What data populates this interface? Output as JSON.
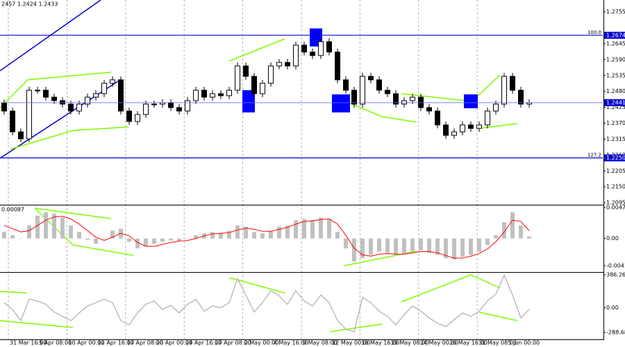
{
  "chart_data": [
    {
      "type": "candlestick",
      "header": "2457 1.2424 1.2433",
      "color": "#000000",
      "ohlc": [
        [
          1.244,
          1.2452,
          1.24,
          1.2412
        ],
        [
          1.2412,
          1.2424,
          1.2328,
          1.234
        ],
        [
          1.234,
          1.2352,
          1.2304,
          1.2316
        ],
        [
          1.2316,
          1.2496,
          1.2304,
          1.2484
        ],
        [
          1.2484,
          1.2496,
          1.2472,
          1.2484
        ],
        [
          1.2484,
          1.2496,
          1.2448,
          1.246
        ],
        [
          1.246,
          1.2472,
          1.2436,
          1.2448
        ],
        [
          1.2448,
          1.246,
          1.2424,
          1.2436
        ],
        [
          1.2436,
          1.2448,
          1.24,
          1.2412
        ],
        [
          1.2412,
          1.2448,
          1.24,
          1.2436
        ],
        [
          1.2436,
          1.2472,
          1.2424,
          1.246
        ],
        [
          1.246,
          1.2484,
          1.2448,
          1.2472
        ],
        [
          1.2472,
          1.252,
          1.246,
          1.2508
        ],
        [
          1.2508,
          1.2532,
          1.2496,
          1.252
        ],
        [
          1.252,
          1.2532,
          1.24,
          1.2412
        ],
        [
          1.2412,
          1.2424,
          1.2364,
          1.2376
        ],
        [
          1.2376,
          1.2412,
          1.2364,
          1.24
        ],
        [
          1.24,
          1.2448,
          1.2388,
          1.2436
        ],
        [
          1.2436,
          1.2448,
          1.2424,
          1.2436
        ],
        [
          1.2436,
          1.2453,
          1.2424,
          1.2441
        ],
        [
          1.2441,
          1.2453,
          1.2412,
          1.2424
        ],
        [
          1.2424,
          1.2436,
          1.24,
          1.2412
        ],
        [
          1.2412,
          1.246,
          1.24,
          1.2448
        ],
        [
          1.2448,
          1.2496,
          1.2436,
          1.2484
        ],
        [
          1.2484,
          1.2496,
          1.2448,
          1.246
        ],
        [
          1.246,
          1.2484,
          1.2448,
          1.2472
        ],
        [
          1.2472,
          1.2484,
          1.2453,
          1.2465
        ],
        [
          1.2465,
          1.2496,
          1.2453,
          1.2484
        ],
        [
          1.2484,
          1.258,
          1.2472,
          1.2568
        ],
        [
          1.2568,
          1.258,
          1.252,
          1.2532
        ],
        [
          1.2532,
          1.2544,
          1.246,
          1.2472
        ],
        [
          1.2472,
          1.252,
          1.246,
          1.2508
        ],
        [
          1.2508,
          1.258,
          1.2496,
          1.2568
        ],
        [
          1.2568,
          1.2592,
          1.2556,
          1.258
        ],
        [
          1.258,
          1.2592,
          1.2556,
          1.2568
        ],
        [
          1.2568,
          1.2652,
          1.2556,
          1.264
        ],
        [
          1.264,
          1.2652,
          1.2604,
          1.2616
        ],
        [
          1.2616,
          1.2628,
          1.2592,
          1.2604
        ],
        [
          1.2604,
          1.2664,
          1.2592,
          1.2652
        ],
        [
          1.2652,
          1.2664,
          1.2604,
          1.2616
        ],
        [
          1.2616,
          1.2628,
          1.2508,
          1.252
        ],
        [
          1.252,
          1.2532,
          1.2472,
          1.2484
        ],
        [
          1.2484,
          1.2496,
          1.2424,
          1.2436
        ],
        [
          1.2436,
          1.2544,
          1.2424,
          1.2532
        ],
        [
          1.2532,
          1.2544,
          1.2508,
          1.252
        ],
        [
          1.252,
          1.2532,
          1.2472,
          1.2484
        ],
        [
          1.2484,
          1.2496,
          1.246,
          1.2472
        ],
        [
          1.2472,
          1.2484,
          1.2424,
          1.2436
        ],
        [
          1.2436,
          1.246,
          1.2424,
          1.2448
        ],
        [
          1.2448,
          1.2472,
          1.2436,
          1.246
        ],
        [
          1.246,
          1.2472,
          1.2412,
          1.2424
        ],
        [
          1.2424,
          1.2436,
          1.24,
          1.2412
        ],
        [
          1.2412,
          1.2424,
          1.2352,
          1.2364
        ],
        [
          1.2364,
          1.2376,
          1.2316,
          1.2328
        ],
        [
          1.2328,
          1.2352,
          1.2316,
          1.234
        ],
        [
          1.234,
          1.2376,
          1.2328,
          1.2364
        ],
        [
          1.2364,
          1.2376,
          1.234,
          1.2352
        ],
        [
          1.2352,
          1.2376,
          1.234,
          1.2364
        ],
        [
          1.2364,
          1.2424,
          1.2352,
          1.2412
        ],
        [
          1.2412,
          1.2448,
          1.24,
          1.2436
        ],
        [
          1.2436,
          1.2544,
          1.2424,
          1.2532
        ],
        [
          1.2532,
          1.2544,
          1.2472,
          1.2484
        ],
        [
          1.2484,
          1.2496,
          1.2424,
          1.2436
        ],
        [
          1.2436,
          1.2453,
          1.2424,
          1.2441
        ]
      ],
      "ylim": [
        1.2088,
        1.2796
      ],
      "yticks": [
        1.2095,
        {
          "value": 1.215,
          "label": "1.2150"
        },
        1.2205,
        {
          "value": 1.226,
          "label": "1.2260"
        },
        1.2315,
        {
          "value": 1.237,
          "label": "1.2370"
        },
        1.2425,
        {
          "value": 1.248,
          "label": "1.2480"
        },
        1.2535,
        {
          "value": 1.259,
          "label": "1.2590"
        },
        1.2645,
        1.2755
      ],
      "levels": [
        {
          "name": "100.0",
          "price": 1.2674,
          "color": "#0000cd"
        },
        {
          "name": "127.2",
          "price": {
            "value": 1.225,
            "label": "1.2250"
          },
          "color": "#0000cd"
        }
      ],
      "last_price": 1.2441,
      "xtick_labels": [
        "31 Mar 16:00",
        "5 Apr 08:00",
        "10 Apr 00:00",
        "12 Apr 16:00",
        "17 Apr 08:00",
        "20 Apr 00:00",
        "24 Apr 16:00",
        "27 Apr 08:00",
        "2 May 00:00",
        "4 May 16:00",
        "9 May 08:00",
        "12 May 00:00",
        "16 May 16:00",
        "19 May 08:00",
        "24 May 00:00",
        "26 May 16:00",
        "31 May 08:00",
        "5 Jun 00:00"
      ]
    },
    {
      "type": "macd",
      "label": "0.00087",
      "histogram": [
        0.001,
        0.0005,
        0.0,
        0.002,
        0.0035,
        0.004,
        0.0038,
        0.0032,
        0.002,
        0.001,
        -0.0002,
        -0.0008,
        0.0,
        0.0012,
        0.0015,
        -0.0005,
        -0.0015,
        -0.0012,
        -0.0008,
        -0.0005,
        -0.0003,
        -0.0004,
        0.0,
        0.0005,
        0.0008,
        0.001,
        0.0008,
        0.0012,
        0.002,
        0.0018,
        0.001,
        0.0008,
        0.0012,
        0.0018,
        0.002,
        0.0028,
        0.003,
        0.0028,
        0.0032,
        0.003,
        0.001,
        -0.0015,
        -0.0035,
        -0.003,
        -0.0025,
        -0.002,
        -0.0022,
        -0.0025,
        -0.0024,
        -0.002,
        -0.0018,
        -0.0022,
        -0.0025,
        -0.003,
        -0.0032,
        -0.0028,
        -0.0025,
        -0.002,
        -0.001,
        0.0005,
        0.0025,
        0.004,
        0.002,
        0.0003
      ],
      "histogram_color": "#c0c0c0",
      "signal": [
        0.002,
        0.0015,
        0.001,
        0.0012,
        0.002,
        0.0028,
        0.0033,
        0.0034,
        0.003,
        0.0022,
        0.0012,
        0.0002,
        -0.0003,
        0.0002,
        0.0008,
        0.0004,
        -0.0006,
        -0.0012,
        -0.0012,
        -0.0009,
        -0.0006,
        -0.0004,
        -0.0003,
        0.0,
        0.0004,
        0.0007,
        0.0008,
        0.0009,
        0.0013,
        0.0016,
        0.0014,
        0.0011,
        0.0011,
        0.0014,
        0.0017,
        0.0022,
        0.0026,
        0.0027,
        0.0029,
        0.003,
        0.0022,
        0.0005,
        -0.0015,
        -0.0025,
        -0.0027,
        -0.0024,
        -0.0023,
        -0.0024,
        -0.0024,
        -0.0022,
        -0.002,
        -0.002,
        -0.0022,
        -0.0026,
        -0.003,
        -0.003,
        -0.0027,
        -0.0023,
        -0.0016,
        -0.0005,
        0.001,
        0.0028,
        0.0026,
        0.0012
      ],
      "signal_color": "#ff0000",
      "ylim": [
        -0.00513,
        0.00506
      ],
      "yticks": [
        -0.00416,
        {
          "value": 0,
          "label": "0.00"
        },
        0.00474
      ]
    },
    {
      "type": "line",
      "color": "#b4b4b4",
      "values": [
        60,
        -20,
        -150,
        100,
        80,
        40,
        -50,
        -100,
        -150,
        -60,
        20,
        60,
        100,
        60,
        -150,
        -200,
        -60,
        40,
        80,
        -20,
        30,
        -60,
        40,
        100,
        -40,
        20,
        0,
        60,
        340,
        150,
        -50,
        60,
        200,
        140,
        40,
        200,
        80,
        20,
        150,
        60,
        -150,
        -250,
        -280,
        120,
        60,
        -40,
        -100,
        -200,
        -80,
        20,
        -40,
        -120,
        -180,
        -220,
        -140,
        -60,
        -100,
        -40,
        80,
        160,
        380,
        150,
        -120,
        -20
      ],
      "ylim": [
        -370,
        410
      ],
      "yticks": [
        -288.682,
        {
          "value": 0,
          "label": "0.00"
        },
        386.2645
      ]
    }
  ]
}
